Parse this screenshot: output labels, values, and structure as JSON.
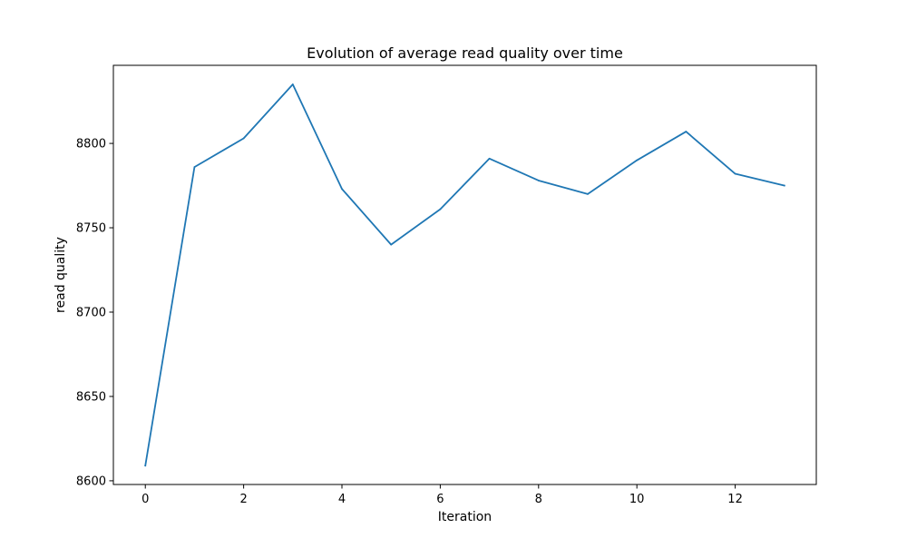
{
  "chart_data": {
    "type": "line",
    "title": "Evolution of average read quality over time",
    "xlabel": "Iteration",
    "ylabel": "read quality",
    "xlim": [
      -0.65,
      13.65
    ],
    "ylim": [
      8597.8,
      8846.3
    ],
    "xticks": [
      0,
      2,
      4,
      6,
      8,
      10,
      12
    ],
    "yticks": [
      8600,
      8650,
      8700,
      8750,
      8800
    ],
    "grid": false,
    "legend": "none",
    "series": [
      {
        "color": "#1f77b4",
        "x": [
          0,
          1,
          2,
          3,
          4,
          5,
          6,
          7,
          8,
          9,
          10,
          11,
          12,
          13
        ],
        "y": [
          8609,
          8786,
          8803,
          8835,
          8773,
          8740,
          8761,
          8791,
          8778,
          8770,
          8790,
          8807,
          8782,
          8775
        ]
      }
    ]
  }
}
